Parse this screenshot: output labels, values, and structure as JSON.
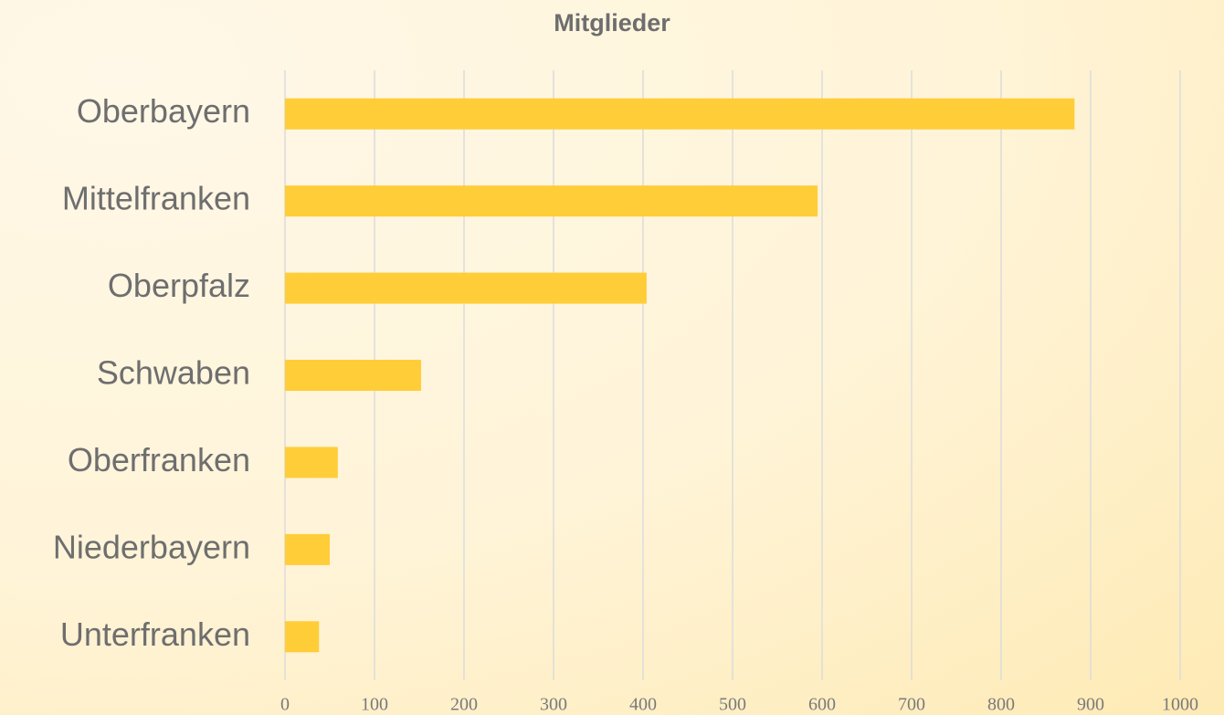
{
  "chart_data": {
    "type": "bar",
    "orientation": "horizontal",
    "title": "Mitglieder",
    "categories": [
      "Oberbayern",
      "Mittelfranken",
      "Oberpfalz",
      "Schwaben",
      "Oberfranken",
      "Niederbayern",
      "Unterfranken"
    ],
    "values": [
      882,
      595,
      404,
      152,
      59,
      50,
      38
    ],
    "color": "#ffcd38",
    "xlim": [
      0,
      1000
    ],
    "xticks": [
      0,
      100,
      200,
      300,
      400,
      500,
      600,
      700,
      800,
      900,
      1000
    ],
    "grid": true
  }
}
